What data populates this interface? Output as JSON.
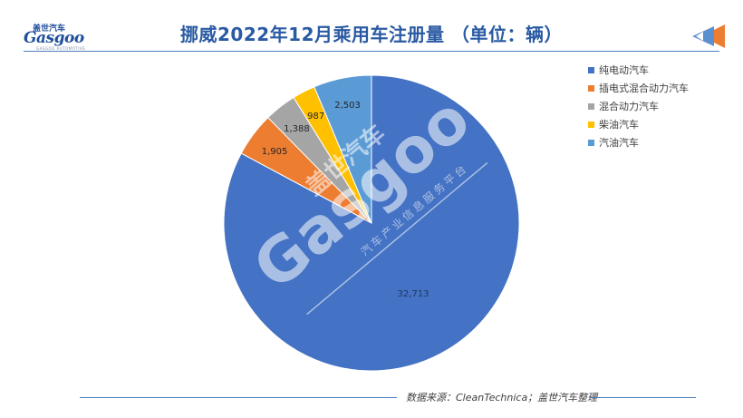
{
  "header": {
    "logo_cn": "盖世汽车",
    "logo_en": "Gasgoo",
    "logo_sub": "GASGOO AUTOMOTIVE",
    "title": "挪威2022年12月乘用车注册量 （单位：辆）"
  },
  "chart_data": {
    "type": "pie",
    "title": "挪威2022年12月乘用车注册量 （单位：辆）",
    "unit": "辆",
    "legend_position": "right",
    "slices": [
      {
        "label": "纯电动汽车",
        "value": 32713,
        "display": "32,713",
        "color": "#4472c4"
      },
      {
        "label": "插电式混合动力汽车",
        "value": 1905,
        "display": "1,905",
        "color": "#ed7d31"
      },
      {
        "label": "混合动力汽车",
        "value": 1388,
        "display": "1,388",
        "color": "#a5a5a5"
      },
      {
        "label": "柴油汽车",
        "value": 987,
        "display": "987",
        "color": "#ffc000"
      },
      {
        "label": "汽油汽车",
        "value": 2503,
        "display": "2,503",
        "color": "#5b9bd5"
      }
    ]
  },
  "watermark": {
    "cn": "盖世汽车",
    "en": "Gasgoo",
    "tagline": "汽车产业信息服务平台"
  },
  "footer": {
    "source": "数据来源：CleanTechnica；盖世汽车整理"
  }
}
